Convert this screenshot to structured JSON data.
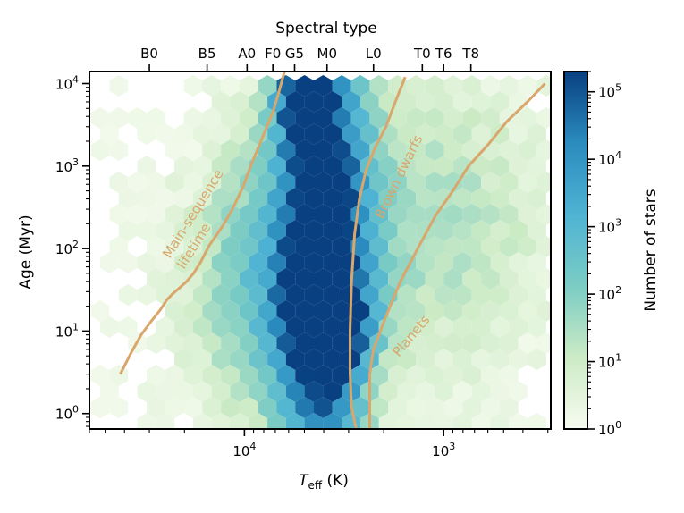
{
  "chart_data": {
    "type": "heatmap",
    "subtype": "hexbin",
    "xlabel_main": "T",
    "xlabel_sub": "eff",
    "xlabel_unit": " (K)",
    "ylabel": "Age (Myr)",
    "top_axis_title": "Spectral type",
    "colorbar_label": "Number of stars",
    "x_scale": "log",
    "x_inverted": true,
    "xlim": [
      60000,
      290
    ],
    "y_scale": "log",
    "ylim": [
      0.65,
      14000
    ],
    "color_scale": "log",
    "color_range": [
      1,
      200000
    ],
    "bottom_ticks": [
      {
        "value": 10000,
        "base": "10",
        "exp": "4"
      },
      {
        "value": 1000,
        "base": "10",
        "exp": "3"
      }
    ],
    "y_ticks": [
      {
        "value": 1,
        "base": "10",
        "exp": "0"
      },
      {
        "value": 10,
        "base": "10",
        "exp": "1"
      },
      {
        "value": 100,
        "base": "10",
        "exp": "2"
      },
      {
        "value": 1000,
        "base": "10",
        "exp": "3"
      },
      {
        "value": 10000,
        "base": "10",
        "exp": "4"
      }
    ],
    "colorbar_ticks": [
      {
        "value": 1,
        "base": "10",
        "exp": "0"
      },
      {
        "value": 10,
        "base": "10",
        "exp": "1"
      },
      {
        "value": 100,
        "base": "10",
        "exp": "2"
      },
      {
        "value": 1000,
        "base": "10",
        "exp": "3"
      },
      {
        "value": 10000,
        "base": "10",
        "exp": "4"
      },
      {
        "value": 100000,
        "base": "10",
        "exp": "5"
      }
    ],
    "spectral_ticks": [
      {
        "label": "B0",
        "teff": 30000
      },
      {
        "label": "B5",
        "teff": 15400
      },
      {
        "label": "A0",
        "teff": 9700
      },
      {
        "label": "F0",
        "teff": 7200
      },
      {
        "label": "G5",
        "teff": 5600
      },
      {
        "label": "M0",
        "teff": 3850
      },
      {
        "label": "L0",
        "teff": 2250
      },
      {
        "label": "T0",
        "teff": 1280
      },
      {
        "label": "T6",
        "teff": 1000
      },
      {
        "label": "T8",
        "teff": 730
      }
    ],
    "curves": [
      {
        "name": "Main-sequence lifetime",
        "label_lines": [
          "Main-sequence",
          "lifetime"
        ],
        "teff": [
          42000,
          37000,
          33000,
          29500,
          26500,
          24500,
          23000,
          21000,
          19500,
          18000,
          16500,
          15000,
          13000,
          11500,
          10200,
          9300,
          8500,
          7800,
          7200,
          6700,
          6300
        ],
        "age": [
          3.0,
          5.5,
          9.0,
          13,
          18,
          24,
          28,
          34,
          40,
          50,
          70,
          110,
          180,
          300,
          550,
          1000,
          1700,
          2800,
          4500,
          8000,
          14000
        ]
      },
      {
        "name": "Brown dwarfs",
        "label_lines": [
          "Brown dwarfs"
        ],
        "teff": [
          2750,
          2900,
          2950,
          2950,
          2900,
          2800,
          2650,
          2450,
          2200,
          1950,
          1750,
          1560
        ],
        "age": [
          0.65,
          1.2,
          3.0,
          10,
          40,
          150,
          400,
          900,
          1700,
          3000,
          6000,
          12000
        ]
      },
      {
        "name": "Planets",
        "label_lines": [
          "Planets"
        ],
        "teff": [
          2350,
          2350,
          2250,
          1950,
          1650,
          1350,
          1100,
          900,
          750,
          600,
          480,
          380,
          310
        ],
        "age": [
          0.65,
          3.0,
          6.0,
          15,
          40,
          100,
          250,
          500,
          1000,
          1800,
          3500,
          6000,
          10000
        ]
      }
    ]
  }
}
